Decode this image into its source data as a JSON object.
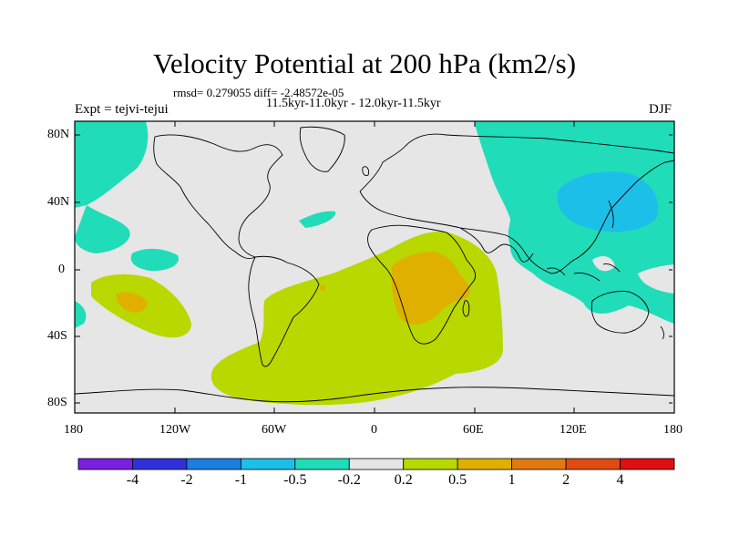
{
  "title": "Velocity Potential at 200 hPa (km2/s)",
  "stats": "rmsd= 0.279055 diff= -2.48572e-05",
  "period": "11.5kyr-11.0kyr - 12.0kyr-11.5kyr",
  "experiment": "Expt = tejvi-tejui",
  "season": "DJF",
  "y_ticks": [
    "80N",
    "40N",
    "0",
    "40S",
    "80S"
  ],
  "x_ticks": [
    "180",
    "120W",
    "60W",
    "0",
    "60E",
    "120E",
    "180"
  ],
  "colorbar": {
    "colors": [
      "#7a1fe0",
      "#3030d8",
      "#1a7fe0",
      "#1cbfe8",
      "#20dcb8",
      "#e6e6e6",
      "#b8d800",
      "#e0b000",
      "#e07a10",
      "#e04a10",
      "#e00e0e"
    ],
    "labels": [
      "-4",
      "-2",
      "-1",
      "-0.5",
      "-0.2",
      "0.2",
      "0.5",
      "1",
      "2",
      "4"
    ]
  },
  "fill_colors": {
    "neutral": "#e6e6e6",
    "neg_weak": "#20dcb8",
    "neg_mod": "#1cbfe8",
    "pos_weak": "#b8d800",
    "pos_mod": "#e0b000"
  }
}
